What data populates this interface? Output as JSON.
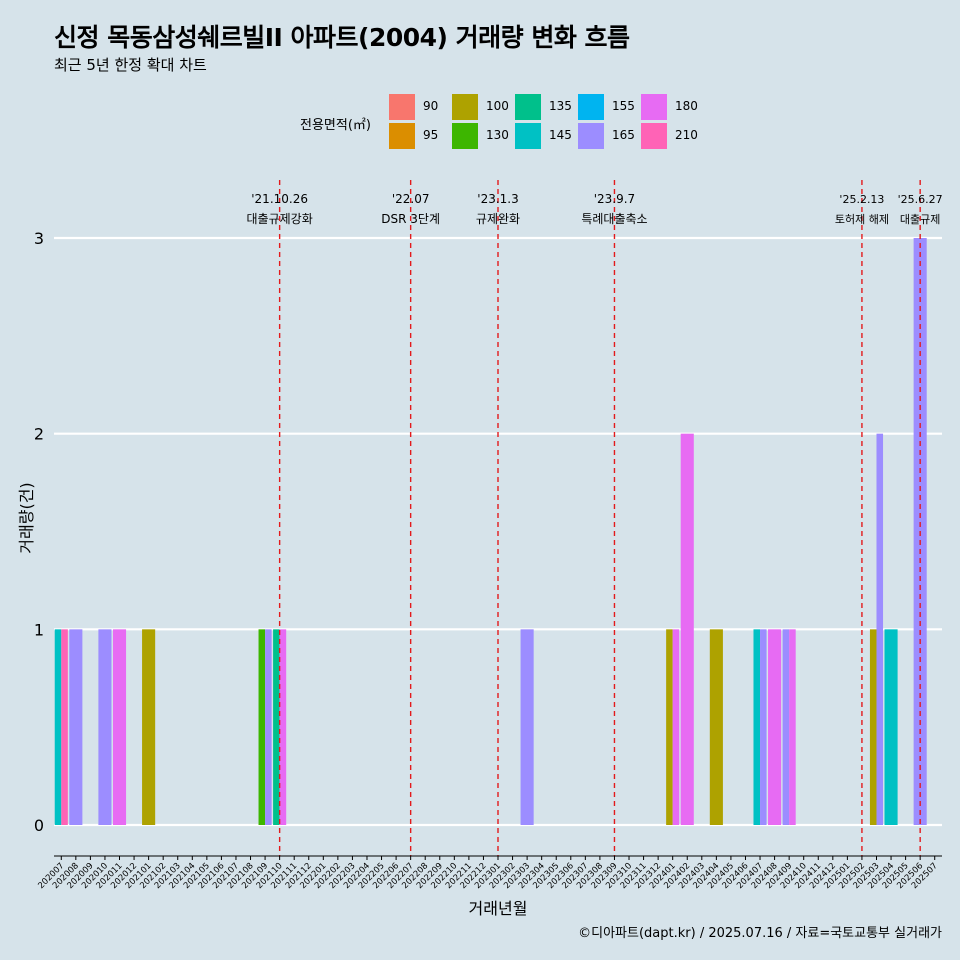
{
  "header": {
    "title": "신정 목동삼성쉐르빌II 아파트(2004) 거래량 변화 흐름",
    "subtitle": "최근 5년 한정 확대 차트"
  },
  "legend": {
    "title": "전용면적(㎡)",
    "items": [
      {
        "label": "90",
        "color": "#F8766D"
      },
      {
        "label": "95",
        "color": "#DB8E00"
      },
      {
        "label": "100",
        "color": "#AEA200"
      },
      {
        "label": "130",
        "color": "#3DB600"
      },
      {
        "label": "135",
        "color": "#00C08B"
      },
      {
        "label": "145",
        "color": "#00C1C4"
      },
      {
        "label": "155",
        "color": "#00B4F0"
      },
      {
        "label": "165",
        "color": "#9C8DFF"
      },
      {
        "label": "180",
        "color": "#E76BF3"
      },
      {
        "label": "210",
        "color": "#FF63B6"
      }
    ]
  },
  "caption": "©디아파트(dapt.kr) / 2025.07.16 / 자료=국토교통부 실거래가",
  "chart_data": {
    "type": "bar",
    "xlabel": "거래년월",
    "ylabel": "거래량(건)",
    "ylim": [
      0,
      3
    ],
    "yticks": [
      0,
      1,
      2,
      3
    ],
    "grid": "horizontal",
    "legend_position": "top",
    "categories": [
      "202007",
      "202008",
      "202009",
      "202010",
      "202011",
      "202012",
      "202101",
      "202102",
      "202103",
      "202104",
      "202105",
      "202106",
      "202107",
      "202108",
      "202109",
      "202110",
      "202111",
      "202112",
      "202201",
      "202202",
      "202203",
      "202204",
      "202205",
      "202206",
      "202207",
      "202208",
      "202209",
      "202210",
      "202211",
      "202212",
      "202301",
      "202302",
      "202303",
      "202304",
      "202305",
      "202306",
      "202307",
      "202308",
      "202309",
      "202310",
      "202311",
      "202312",
      "202401",
      "202402",
      "202403",
      "202404",
      "202405",
      "202406",
      "202407",
      "202408",
      "202409",
      "202410",
      "202411",
      "202412",
      "202501",
      "202502",
      "202503",
      "202504",
      "202505",
      "202506",
      "202507"
    ],
    "bars": [
      {
        "month": "202007",
        "area": "145",
        "value": 1
      },
      {
        "month": "202007",
        "area": "210",
        "value": 1
      },
      {
        "month": "202008",
        "area": "165",
        "value": 1
      },
      {
        "month": "202010",
        "area": "165",
        "value": 1
      },
      {
        "month": "202011",
        "area": "180",
        "value": 1
      },
      {
        "month": "202101",
        "area": "100",
        "value": 1
      },
      {
        "month": "202109",
        "area": "130",
        "value": 1
      },
      {
        "month": "202109",
        "area": "165",
        "value": 1
      },
      {
        "month": "202110",
        "area": "135",
        "value": 1
      },
      {
        "month": "202110",
        "area": "180",
        "value": 1
      },
      {
        "month": "202303",
        "area": "165",
        "value": 1
      },
      {
        "month": "202401",
        "area": "100",
        "value": 1
      },
      {
        "month": "202401",
        "area": "180",
        "value": 1
      },
      {
        "month": "202402",
        "area": "180",
        "value": 2
      },
      {
        "month": "202404",
        "area": "100",
        "value": 1
      },
      {
        "month": "202407",
        "area": "145",
        "value": 1
      },
      {
        "month": "202407",
        "area": "165",
        "value": 1
      },
      {
        "month": "202408",
        "area": "180",
        "value": 1
      },
      {
        "month": "202409",
        "area": "165",
        "value": 1
      },
      {
        "month": "202409",
        "area": "180",
        "value": 1
      },
      {
        "month": "202503",
        "area": "100",
        "value": 1
      },
      {
        "month": "202503",
        "area": "165",
        "value": 2
      },
      {
        "month": "202504",
        "area": "145",
        "value": 1
      },
      {
        "month": "202506",
        "area": "165",
        "value": 3
      }
    ],
    "annotations": [
      {
        "month": "202110",
        "date": "'21.10.26",
        "label": "대출규제강화"
      },
      {
        "month": "202207",
        "date": "'22.07",
        "label": "DSR 3단계"
      },
      {
        "month": "202301",
        "date": "'23.1.3",
        "label": "규제완화"
      },
      {
        "month": "202309",
        "date": "'23.9.7",
        "label": "특례대출축소"
      },
      {
        "month": "202502",
        "date": "'25.2.13",
        "label": "토허제 해제"
      },
      {
        "month": "202506",
        "date": "'25.6.27",
        "label": "대출규제"
      }
    ]
  }
}
